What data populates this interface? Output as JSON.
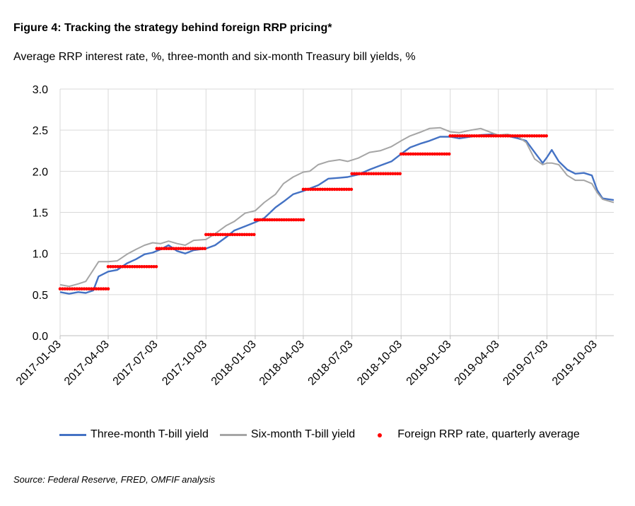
{
  "figure": {
    "title": "Figure 4: Tracking the strategy behind foreign RRP pricing*",
    "subtitle": "Average RRP interest rate, %, three-month and six-month Treasury bill yields, %",
    "source": "Source: Federal Reserve, FRED, OMFIF analysis"
  },
  "chart_data": {
    "type": "line",
    "ylim": [
      0.0,
      3.0
    ],
    "y_ticks": [
      "0.0",
      "0.5",
      "1.0",
      "1.5",
      "2.0",
      "2.5",
      "3.0"
    ],
    "y_tick_values": [
      0,
      0.5,
      1.0,
      1.5,
      2.0,
      2.5,
      3.0
    ],
    "x_range": [
      "2017-01-03",
      "2019-11-05"
    ],
    "x_ticks": [
      "2017-01-03",
      "2017-04-03",
      "2017-07-03",
      "2017-10-03",
      "2018-01-03",
      "2018-04-03",
      "2018-07-03",
      "2018-10-03",
      "2019-01-03",
      "2019-04-03",
      "2019-07-03",
      "2019-10-03"
    ],
    "grid": true,
    "legend_position": "bottom",
    "series": [
      {
        "name": "Three-month T-bill yield",
        "color": "#4472c4",
        "style": "line",
        "points": [
          [
            "2017-01-03",
            0.53
          ],
          [
            "2017-01-20",
            0.51
          ],
          [
            "2017-02-06",
            0.53
          ],
          [
            "2017-02-20",
            0.52
          ],
          [
            "2017-03-06",
            0.55
          ],
          [
            "2017-03-16",
            0.72
          ],
          [
            "2017-04-03",
            0.78
          ],
          [
            "2017-04-20",
            0.8
          ],
          [
            "2017-05-08",
            0.88
          ],
          [
            "2017-05-25",
            0.93
          ],
          [
            "2017-06-10",
            0.99
          ],
          [
            "2017-06-25",
            1.01
          ],
          [
            "2017-07-10",
            1.05
          ],
          [
            "2017-07-25",
            1.1
          ],
          [
            "2017-08-10",
            1.03
          ],
          [
            "2017-08-25",
            1.0
          ],
          [
            "2017-09-10",
            1.04
          ],
          [
            "2017-10-03",
            1.06
          ],
          [
            "2017-10-20",
            1.1
          ],
          [
            "2017-11-10",
            1.2
          ],
          [
            "2017-11-25",
            1.28
          ],
          [
            "2017-12-15",
            1.33
          ],
          [
            "2018-01-03",
            1.38
          ],
          [
            "2018-01-20",
            1.43
          ],
          [
            "2018-02-10",
            1.56
          ],
          [
            "2018-02-25",
            1.63
          ],
          [
            "2018-03-15",
            1.72
          ],
          [
            "2018-04-03",
            1.76
          ],
          [
            "2018-04-15",
            1.79
          ],
          [
            "2018-05-01",
            1.83
          ],
          [
            "2018-05-20",
            1.91
          ],
          [
            "2018-06-10",
            1.92
          ],
          [
            "2018-06-25",
            1.93
          ],
          [
            "2018-07-15",
            1.96
          ],
          [
            "2018-08-05",
            2.02
          ],
          [
            "2018-08-25",
            2.07
          ],
          [
            "2018-09-15",
            2.12
          ],
          [
            "2018-10-03",
            2.21
          ],
          [
            "2018-10-20",
            2.29
          ],
          [
            "2018-11-10",
            2.34
          ],
          [
            "2018-11-25",
            2.37
          ],
          [
            "2018-12-15",
            2.42
          ],
          [
            "2019-01-03",
            2.42
          ],
          [
            "2019-01-20",
            2.4
          ],
          [
            "2019-02-10",
            2.42
          ],
          [
            "2019-03-01",
            2.44
          ],
          [
            "2019-03-25",
            2.45
          ],
          [
            "2019-04-03",
            2.43
          ],
          [
            "2019-04-20",
            2.43
          ],
          [
            "2019-05-10",
            2.4
          ],
          [
            "2019-05-25",
            2.37
          ],
          [
            "2019-06-10",
            2.23
          ],
          [
            "2019-06-25",
            2.1
          ],
          [
            "2019-07-03",
            2.17
          ],
          [
            "2019-07-12",
            2.26
          ],
          [
            "2019-07-25",
            2.12
          ],
          [
            "2019-08-10",
            2.02
          ],
          [
            "2019-08-25",
            1.97
          ],
          [
            "2019-09-10",
            1.98
          ],
          [
            "2019-09-25",
            1.95
          ],
          [
            "2019-10-05",
            1.77
          ],
          [
            "2019-10-15",
            1.67
          ],
          [
            "2019-11-05",
            1.65
          ]
        ]
      },
      {
        "name": "Six-month T-bill yield",
        "color": "#a5a5a5",
        "style": "line",
        "points": [
          [
            "2017-01-03",
            0.62
          ],
          [
            "2017-01-20",
            0.6
          ],
          [
            "2017-02-06",
            0.63
          ],
          [
            "2017-02-20",
            0.66
          ],
          [
            "2017-03-06",
            0.8
          ],
          [
            "2017-03-16",
            0.9
          ],
          [
            "2017-04-03",
            0.9
          ],
          [
            "2017-04-20",
            0.91
          ],
          [
            "2017-05-08",
            0.99
          ],
          [
            "2017-05-25",
            1.05
          ],
          [
            "2017-06-10",
            1.1
          ],
          [
            "2017-06-25",
            1.13
          ],
          [
            "2017-07-10",
            1.12
          ],
          [
            "2017-07-25",
            1.15
          ],
          [
            "2017-08-10",
            1.12
          ],
          [
            "2017-08-25",
            1.1
          ],
          [
            "2017-09-10",
            1.16
          ],
          [
            "2017-10-03",
            1.17
          ],
          [
            "2017-10-20",
            1.24
          ],
          [
            "2017-11-10",
            1.34
          ],
          [
            "2017-11-25",
            1.39
          ],
          [
            "2017-12-15",
            1.49
          ],
          [
            "2018-01-03",
            1.52
          ],
          [
            "2018-01-20",
            1.62
          ],
          [
            "2018-02-10",
            1.72
          ],
          [
            "2018-02-25",
            1.85
          ],
          [
            "2018-03-15",
            1.93
          ],
          [
            "2018-04-03",
            1.99
          ],
          [
            "2018-04-15",
            2.0
          ],
          [
            "2018-05-01",
            2.08
          ],
          [
            "2018-05-20",
            2.12
          ],
          [
            "2018-06-10",
            2.14
          ],
          [
            "2018-06-25",
            2.12
          ],
          [
            "2018-07-15",
            2.16
          ],
          [
            "2018-08-05",
            2.23
          ],
          [
            "2018-08-25",
            2.25
          ],
          [
            "2018-09-15",
            2.3
          ],
          [
            "2018-10-03",
            2.37
          ],
          [
            "2018-10-20",
            2.43
          ],
          [
            "2018-11-10",
            2.48
          ],
          [
            "2018-11-25",
            2.52
          ],
          [
            "2018-12-15",
            2.53
          ],
          [
            "2019-01-03",
            2.48
          ],
          [
            "2019-01-20",
            2.47
          ],
          [
            "2019-02-10",
            2.5
          ],
          [
            "2019-03-01",
            2.52
          ],
          [
            "2019-03-25",
            2.46
          ],
          [
            "2019-04-03",
            2.44
          ],
          [
            "2019-04-20",
            2.45
          ],
          [
            "2019-05-10",
            2.42
          ],
          [
            "2019-05-25",
            2.35
          ],
          [
            "2019-06-10",
            2.15
          ],
          [
            "2019-06-25",
            2.08
          ],
          [
            "2019-07-03",
            2.1
          ],
          [
            "2019-07-12",
            2.1
          ],
          [
            "2019-07-25",
            2.08
          ],
          [
            "2019-08-10",
            1.95
          ],
          [
            "2019-08-25",
            1.89
          ],
          [
            "2019-09-10",
            1.89
          ],
          [
            "2019-09-25",
            1.85
          ],
          [
            "2019-10-05",
            1.74
          ],
          [
            "2019-10-15",
            1.66
          ],
          [
            "2019-11-05",
            1.62
          ]
        ]
      },
      {
        "name": "Foreign RRP rate, quarterly average",
        "color": "#ff0000",
        "style": "dots",
        "steps": [
          {
            "start": "2017-01-03",
            "end": "2017-04-03",
            "value": 0.57
          },
          {
            "start": "2017-04-03",
            "end": "2017-07-03",
            "value": 0.84
          },
          {
            "start": "2017-07-03",
            "end": "2017-10-03",
            "value": 1.06
          },
          {
            "start": "2017-10-03",
            "end": "2018-01-03",
            "value": 1.23
          },
          {
            "start": "2018-01-03",
            "end": "2018-04-03",
            "value": 1.41
          },
          {
            "start": "2018-04-03",
            "end": "2018-07-03",
            "value": 1.78
          },
          {
            "start": "2018-07-03",
            "end": "2018-10-03",
            "value": 1.97
          },
          {
            "start": "2018-10-03",
            "end": "2019-01-03",
            "value": 2.21
          },
          {
            "start": "2019-01-03",
            "end": "2019-07-03",
            "value": 2.43
          }
        ]
      }
    ]
  }
}
